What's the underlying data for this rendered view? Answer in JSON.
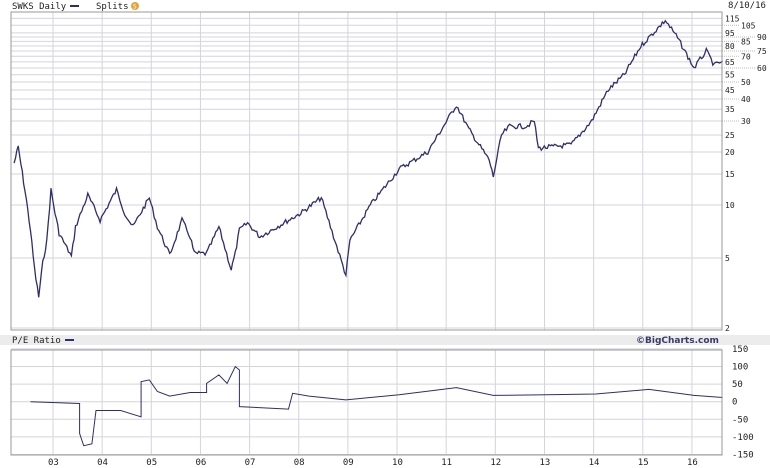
{
  "header": {
    "ticker_label": "SWKS Daily",
    "splits_label": "Splits",
    "splits_badge": "S",
    "date": "8/10/16"
  },
  "lower_header": {
    "label": "P/E Ratio",
    "brand": "©BigCharts.com"
  },
  "colors": {
    "series": "#2e2e6e",
    "grid": "#d4d4dc",
    "splits_badge": "#e8a13a",
    "pane_header_bg": "#ececec"
  },
  "chart_data": [
    {
      "type": "line",
      "series": [
        {
          "name": "SWKS Daily",
          "points": [
            [
              "2002-03",
              17.3
            ],
            [
              "2002-04",
              21.3
            ],
            [
              "2002-05",
              15.2
            ],
            [
              "2002-06",
              10.7
            ],
            [
              "2002-07",
              7.2
            ],
            [
              "2002-08",
              4.3
            ],
            [
              "2002-09",
              3.0
            ],
            [
              "2002-10",
              4.7
            ],
            [
              "2002-11",
              6.3
            ],
            [
              "2002-12",
              12.2
            ],
            [
              "2003-01",
              9.0
            ],
            [
              "2003-02",
              6.9
            ],
            [
              "2003-05",
              5.1
            ],
            [
              "2003-06",
              7.5
            ],
            [
              "2003-09",
              11.4
            ],
            [
              "2003-12",
              8.2
            ],
            [
              "2004-04",
              12.2
            ],
            [
              "2004-06",
              9.0
            ],
            [
              "2004-08",
              7.5
            ],
            [
              "2004-12",
              11.0
            ],
            [
              "2005-02",
              7.5
            ],
            [
              "2005-05",
              5.2
            ],
            [
              "2005-08",
              8.2
            ],
            [
              "2005-10",
              6.6
            ],
            [
              "2005-11",
              5.3
            ],
            [
              "2006-02",
              5.3
            ],
            [
              "2006-05",
              7.5
            ],
            [
              "2006-08",
              4.3
            ],
            [
              "2006-09",
              5.3
            ],
            [
              "2006-10",
              7.2
            ],
            [
              "2006-12",
              7.9
            ],
            [
              "2007-03",
              6.6
            ],
            [
              "2008-01",
              9.0
            ],
            [
              "2008-06",
              11.0
            ],
            [
              "2008-12",
              4.0
            ],
            [
              "2009-01",
              6.3
            ],
            [
              "2009-06",
              10.0
            ],
            [
              "2010-01",
              16
            ],
            [
              "2010-08",
              20
            ],
            [
              "2011-03",
              37
            ],
            [
              "2011-06",
              27
            ],
            [
              "2011-11",
              18
            ],
            [
              "2011-12",
              14.5
            ],
            [
              "2012-02",
              25
            ],
            [
              "2012-04",
              28
            ],
            [
              "2012-08",
              28
            ],
            [
              "2012-10",
              30
            ],
            [
              "2012-11",
              21
            ],
            [
              "2013-07",
              22
            ],
            [
              "2013-12",
              30
            ],
            [
              "2014-04",
              45
            ],
            [
              "2014-08",
              55
            ],
            [
              "2014-12",
              80
            ],
            [
              "2015-06",
              112
            ],
            [
              "2015-09",
              89
            ],
            [
              "2016-01",
              60
            ],
            [
              "2016-04",
              75
            ],
            [
              "2016-06",
              62
            ],
            [
              "2016-08",
              66
            ]
          ]
        }
      ],
      "y_scale": "log",
      "y_ticks": [
        115,
        105,
        95,
        90,
        85,
        80,
        75,
        70,
        65,
        60,
        55,
        50,
        45,
        40,
        35,
        30,
        25,
        20,
        15,
        10,
        5,
        2
      ],
      "x_ticks": [
        "03",
        "04",
        "05",
        "06",
        "07",
        "08",
        "09",
        "10",
        "11",
        "12",
        "13",
        "14",
        "15",
        "16"
      ],
      "grid": true
    },
    {
      "type": "line",
      "series": [
        {
          "name": "P/E Ratio",
          "points": [
            [
              "2002-07",
              0
            ],
            [
              "2003-07",
              -5
            ],
            [
              "2003-07",
              -90
            ],
            [
              "2003-08",
              -125
            ],
            [
              "2003-10",
              -120
            ],
            [
              "2003-11",
              -25
            ],
            [
              "2004-05",
              -25
            ],
            [
              "2004-10",
              -43
            ],
            [
              "2004-10",
              57
            ],
            [
              "2004-12",
              62
            ],
            [
              "2005-02",
              29
            ],
            [
              "2005-05",
              16
            ],
            [
              "2005-10",
              26
            ],
            [
              "2006-02",
              26
            ],
            [
              "2006-02",
              52
            ],
            [
              "2006-05",
              76
            ],
            [
              "2006-07",
              52
            ],
            [
              "2006-09",
              100
            ],
            [
              "2006-10",
              90
            ],
            [
              "2006-10",
              -14
            ],
            [
              "2007-10",
              -21
            ],
            [
              "2007-11",
              24
            ],
            [
              "2008-03",
              16
            ],
            [
              "2008-12",
              5
            ],
            [
              "2010-01",
              20
            ],
            [
              "2011-03",
              40
            ],
            [
              "2011-12",
              18
            ],
            [
              "2013-01",
              20
            ],
            [
              "2014-01",
              22
            ],
            [
              "2015-02",
              35
            ],
            [
              "2016-01",
              18
            ],
            [
              "2016-08",
              12
            ]
          ]
        }
      ],
      "y_ticks": [
        150,
        100,
        50,
        0,
        -50,
        -100,
        -150
      ],
      "ylim": [
        -150,
        150
      ],
      "x_ticks": [
        "03",
        "04",
        "05",
        "06",
        "07",
        "08",
        "09",
        "10",
        "11",
        "12",
        "13",
        "14",
        "15",
        "16"
      ],
      "grid": true
    }
  ]
}
